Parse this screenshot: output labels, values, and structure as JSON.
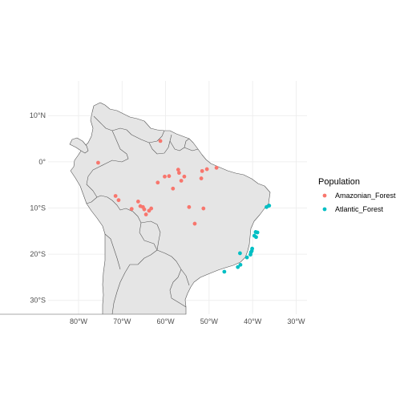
{
  "chart_data": {
    "type": "scatter",
    "title": "",
    "xlabel": "",
    "ylabel": "",
    "xlim": [
      -87,
      -27.5
    ],
    "ylim": [
      -33,
      17.5
    ],
    "x_ticks": [
      -80,
      -70,
      -60,
      -50,
      -40,
      -30
    ],
    "y_ticks": [
      -30,
      -20,
      -10,
      0,
      10
    ],
    "x_tick_labels": [
      "80°W",
      "70°W",
      "60°W",
      "50°W",
      "40°W",
      "30°W"
    ],
    "y_tick_labels": [
      "30°S",
      "20°S",
      "10°S",
      "0°",
      "10°N"
    ],
    "grid": true,
    "legend": {
      "title": "Population",
      "position": "right",
      "items": [
        "Amazonian_Forest",
        "Atlantic_Forest"
      ]
    },
    "colors": {
      "Amazonian_Forest": "#f8766d",
      "Atlantic_Forest": "#00bfc4",
      "land": "#e5e5e5",
      "border": "#555555",
      "grid": "#ebebeb"
    },
    "series": [
      {
        "name": "Amazonian_Forest",
        "points": [
          [
            -75.5,
            -0.2
          ],
          [
            -71.5,
            -7.4
          ],
          [
            -70.8,
            -8.3
          ],
          [
            -67.8,
            -10.2
          ],
          [
            -66.3,
            -8.6
          ],
          [
            -65.8,
            -9.6
          ],
          [
            -65.2,
            -9.8
          ],
          [
            -64.9,
            -10.3
          ],
          [
            -64.5,
            -11.4
          ],
          [
            -63.8,
            -10.6
          ],
          [
            -63.3,
            -10.1
          ],
          [
            -61.8,
            -4.5
          ],
          [
            -60.2,
            -3.2
          ],
          [
            -59.2,
            -3.1
          ],
          [
            -58.3,
            -5.8
          ],
          [
            -57.1,
            -1.7
          ],
          [
            -56.9,
            -2.4
          ],
          [
            -56.4,
            -4.1
          ],
          [
            -55.7,
            -3.2
          ],
          [
            -54.6,
            -9.8
          ],
          [
            -53.3,
            -13.4
          ],
          [
            -51.8,
            -3.6
          ],
          [
            -51.6,
            -2.0
          ],
          [
            -51.3,
            -10.1
          ],
          [
            -50.5,
            -1.6
          ],
          [
            -48.3,
            -1.3
          ],
          [
            -61.2,
            4.5
          ]
        ]
      },
      {
        "name": "Atlantic_Forest",
        "points": [
          [
            -36.8,
            -9.8
          ],
          [
            -36.2,
            -9.5
          ],
          [
            -39.3,
            -15.2
          ],
          [
            -39.2,
            -16.3
          ],
          [
            -38.9,
            -15.3
          ],
          [
            -39.6,
            -16.0
          ],
          [
            -40.1,
            -18.8
          ],
          [
            -40.2,
            -19.3
          ],
          [
            -40.4,
            -19.6
          ],
          [
            -40.5,
            -20.1
          ],
          [
            -41.3,
            -20.7
          ],
          [
            -42.9,
            -19.8
          ],
          [
            -42.8,
            -22.3
          ],
          [
            -43.4,
            -22.8
          ],
          [
            -46.5,
            -23.8
          ]
        ]
      }
    ]
  }
}
